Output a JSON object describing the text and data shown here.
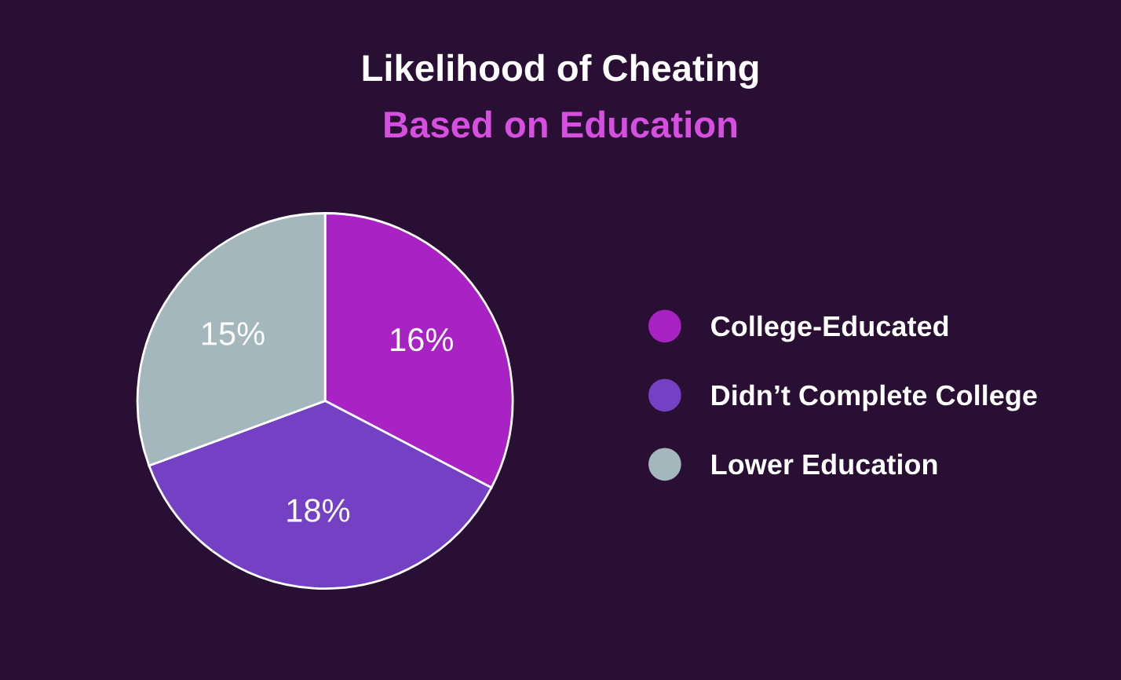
{
  "chart_data": {
    "type": "pie",
    "title": "Likelihood of Cheating",
    "subtitle": "Based on Education",
    "categories": [
      "College-Educated",
      "Didn’t Complete College",
      "Lower Education"
    ],
    "values": [
      16,
      18,
      15
    ],
    "colors": [
      "#a922c4",
      "#7440c4",
      "#a3b7bd"
    ],
    "value_labels": [
      "16%",
      "18%",
      "15%"
    ],
    "legend": "right"
  }
}
